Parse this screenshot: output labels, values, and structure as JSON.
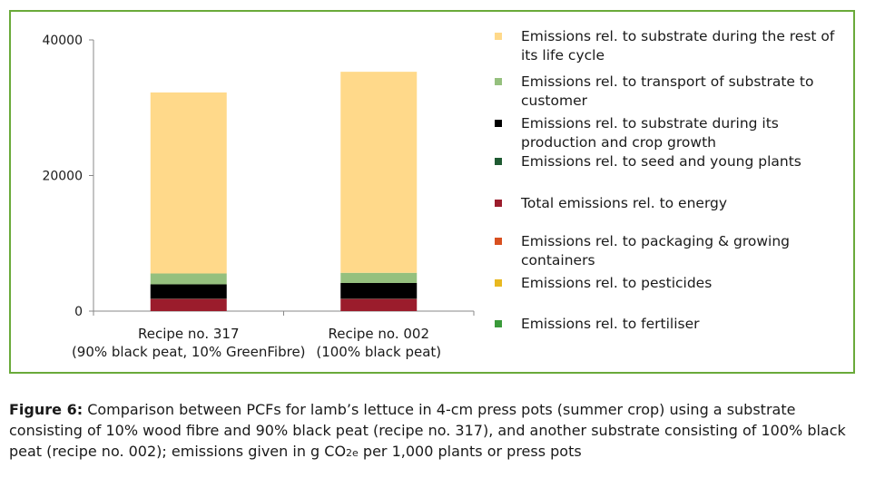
{
  "chart_data": {
    "type": "bar",
    "stacked": true,
    "categories": [
      [
        "Recipe no. 317",
        "(90% black peat, 10% GreenFibre)"
      ],
      [
        "Recipe no. 002",
        "(100% black peat)"
      ]
    ],
    "yticks": [
      "0",
      "20000",
      "40000"
    ],
    "ylim": [
      0,
      40000
    ],
    "grid": false,
    "legend_position": "right",
    "series": [
      {
        "name": "Emissions rel. to fertiliser",
        "color": "#3a9a3a",
        "values": [
          0,
          0
        ]
      },
      {
        "name": "Emissions rel. to pesticides",
        "color": "#e8b820",
        "values": [
          0,
          0
        ]
      },
      {
        "name": "Emissions rel. to packaging & growing containers",
        "color": "#d85020",
        "values": [
          0,
          0
        ]
      },
      {
        "name": "Total emissions rel. to energy",
        "color": "#9b1c2c",
        "values": [
          1800,
          1800
        ]
      },
      {
        "name": "Emissions rel. to seed and young plants",
        "color": "#1f5a32",
        "values": [
          50,
          50
        ]
      },
      {
        "name": "Emissions rel. to substrate during its production and crop growth",
        "color": "#000000",
        "values": [
          2100,
          2300
        ]
      },
      {
        "name": "Emissions rel. to transport of substrate to customer",
        "color": "#95c07e",
        "values": [
          1600,
          1500
        ]
      },
      {
        "name": "Emissions rel. to substrate during the rest of its life cycle",
        "color": "#ffd98a",
        "values": [
          26700,
          29650
        ]
      }
    ]
  },
  "legend": {
    "items": [
      {
        "label": "Emissions rel. to substrate during the rest of its life cycle",
        "color": "#ffd98a"
      },
      {
        "label": "Emissions rel. to transport of substrate to customer",
        "color": "#95c07e"
      },
      {
        "label": "Emissions rel. to substrate during its production and crop growth",
        "color": "#000000"
      },
      {
        "label": "Emissions rel. to seed and young plants",
        "color": "#1f5a32"
      },
      {
        "label": "Total emissions rel. to energy",
        "color": "#9b1c2c"
      },
      {
        "label": "Emissions rel. to packaging & growing containers",
        "color": "#d85020"
      },
      {
        "label": "Emissions rel. to pesticides",
        "color": "#e8b820"
      },
      {
        "label": "Emissions rel. to fertiliser",
        "color": "#3a9a3a"
      }
    ]
  },
  "caption": {
    "label": "Figure 6:",
    "text_before_sub": " Comparison between PCFs for lamb’s lettuce in 4-cm press pots (summer crop) using a substrate consisting of 10% wood fibre and 90% black peat (recipe no. 317), and another substrate consisting of 100% black peat (recipe no. 002); emissions given in g CO",
    "sub": "2e",
    "text_after_sub": " per 1,000 plants or press pots"
  }
}
